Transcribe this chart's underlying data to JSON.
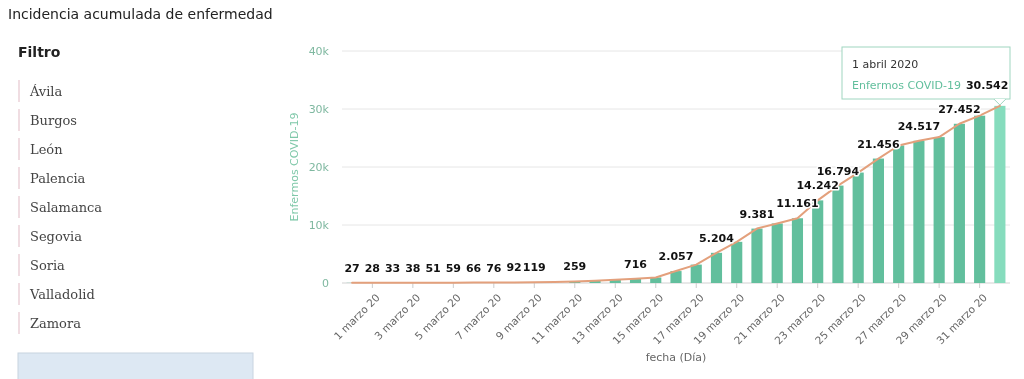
{
  "chart_data": [
    {
      "type": "bar",
      "title": "Incidencia acumulada de enfermedad",
      "xlabel": "fecha (Día)",
      "ylabel": "Enfermos COVID-19",
      "categories": [
        null,
        "1 marzo 20",
        null,
        "3 marzo 20",
        null,
        "5 marzo 20",
        null,
        "7 marzo 20",
        null,
        "9 marzo 20",
        null,
        "11 marzo 20",
        null,
        "13 marzo 20",
        null,
        "15 marzo 20",
        null,
        "17 marzo 20",
        null,
        "19 marzo 20",
        null,
        "21 marzo 20",
        null,
        "23 marzo 20",
        null,
        "25 marzo 20",
        null,
        "27 marzo 20",
        null,
        "29 marzo 20",
        null,
        "31 marzo 20",
        null
      ],
      "series": [
        {
          "type": "bar",
          "name": "Enfermos COVID-19",
          "color": "#62bf9d",
          "colors": [
            "#62bf9d",
            "#62bf9d",
            "#62bf9d",
            "#62bf9d",
            "#62bf9d",
            "#62bf9d",
            "#62bf9d",
            "#62bf9d",
            "#62bf9d",
            "#62bf9d",
            null,
            "#62bf9d",
            "#62bf9d",
            "#62bf9d",
            "#62bf9d",
            "#62bf9d",
            "#62bf9d",
            "#62bf9d",
            "#62bf9d",
            "#62bf9d",
            "#62bf9d",
            "#62bf9d",
            "#62bf9d",
            "#62bf9d",
            "#62bf9d",
            "#62bf9d",
            "#62bf9d",
            "#62bf9d",
            "#62bf9d",
            "#62bf9d",
            "#62bf9d",
            "#62bf9d",
            "#86dcbd"
          ],
          "values": [
            27,
            28,
            33,
            38,
            51,
            59,
            66,
            76,
            92,
            119,
            null,
            259,
            400,
            550,
            716,
            950,
            2057,
            3173,
            5204,
            7097,
            9381,
            10269,
            11161,
            14242,
            16794,
            19038,
            21456,
            23713,
            24517,
            25154,
            27452,
            28846,
            30542
          ],
          "value_labels": [
            "27",
            "28",
            "33",
            "38",
            "51",
            "59",
            "66",
            "76",
            "92",
            "119",
            null,
            "259",
            null,
            null,
            "716",
            null,
            "2.057",
            null,
            "5.204",
            null,
            "9.381",
            null,
            "11.161",
            "14.242",
            "16.794",
            null,
            "21.456",
            null,
            "24.517",
            null,
            "27.452",
            null,
            "30.542"
          ]
        },
        {
          "type": "line",
          "color": "#e3a07c",
          "values": [
            27,
            28,
            33,
            38,
            51,
            59,
            66,
            76,
            92,
            119,
            170,
            259,
            400,
            550,
            716,
            950,
            2057,
            3173,
            5204,
            7097,
            9381,
            10269,
            11161,
            14242,
            16794,
            19038,
            21456,
            23713,
            24517,
            25154,
            27452,
            28846,
            30542
          ]
        }
      ],
      "ylim": [
        0,
        40000
      ],
      "yticks": [
        0,
        {
          "value": 10000,
          "label": "10k"
        },
        {
          "value": 20000,
          "label": "20k"
        },
        {
          "value": 30000,
          "label": "30k"
        },
        {
          "value": 40000,
          "label": "40k"
        }
      ],
      "grid": "y",
      "annotations": [
        "1 abril 2020"
      ]
    },
    {
      "type": "other",
      "title": "Filtro",
      "annotations": [
        "Ávila",
        "Burgos",
        "León",
        "Palencia",
        "Salamanca",
        "Segovia",
        "Soria",
        "Valladolid",
        "Zamora"
      ]
    }
  ]
}
